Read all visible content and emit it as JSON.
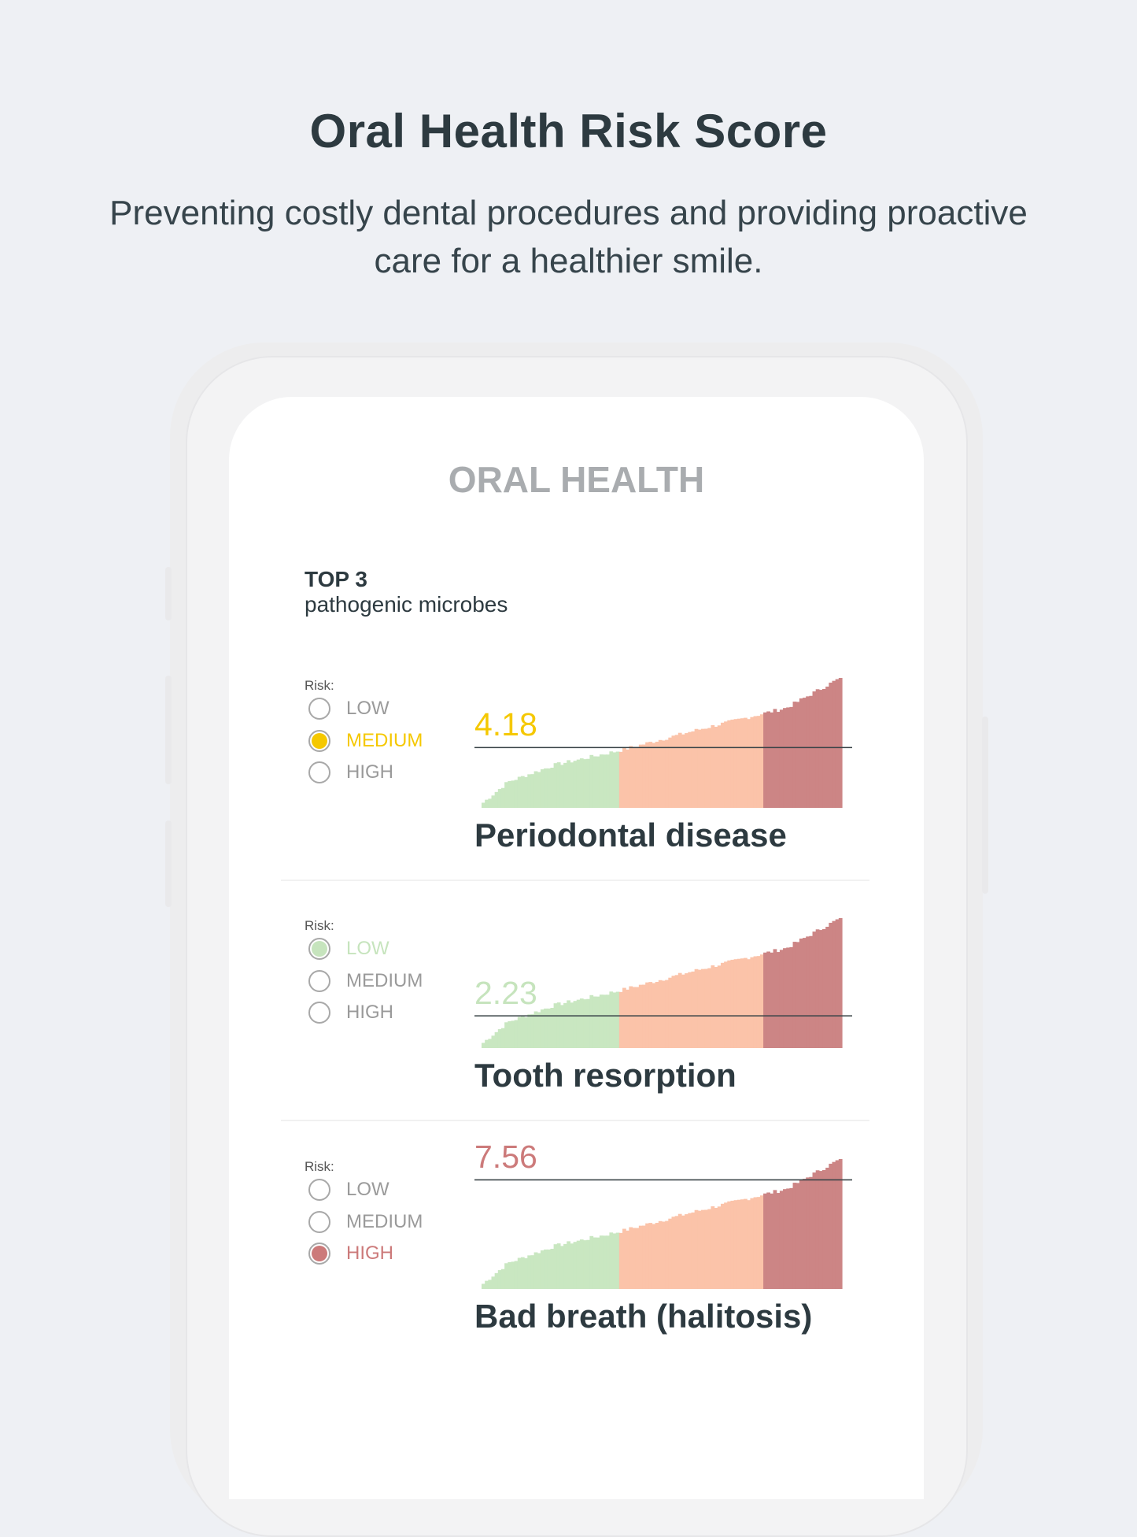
{
  "header": {
    "title": "Oral Health Risk Score",
    "subtitle": "Preventing costly dental procedures and providing proactive care for a healthier smile."
  },
  "app": {
    "title": "ORAL HEALTH",
    "section_heading": "TOP 3",
    "section_subheading": "pathogenic microbes",
    "risk_label": "Risk:",
    "risk_levels": [
      "LOW",
      "MEDIUM",
      "HIGH"
    ]
  },
  "colors": {
    "low": "#c9e7c1",
    "medium_zone": "#fbc3a9",
    "high_zone": "#cc8585",
    "medium_text": "#f5c800",
    "low_text": "#c6e4bd",
    "high_text": "#cc7a7a",
    "dark_text": "#2d3a40"
  },
  "items": [
    {
      "name": "Periodontal disease",
      "score": "4.18",
      "score_value": 4.18,
      "risk": "MEDIUM",
      "accent": "#f5c800"
    },
    {
      "name": "Tooth resorption",
      "score": "2.23",
      "score_value": 2.23,
      "risk": "LOW",
      "accent": "#c6e4bd"
    },
    {
      "name": "Bad breath (halitosis)",
      "score": "7.56",
      "score_value": 7.56,
      "risk": "HIGH",
      "accent": "#cc7a7a"
    }
  ]
}
